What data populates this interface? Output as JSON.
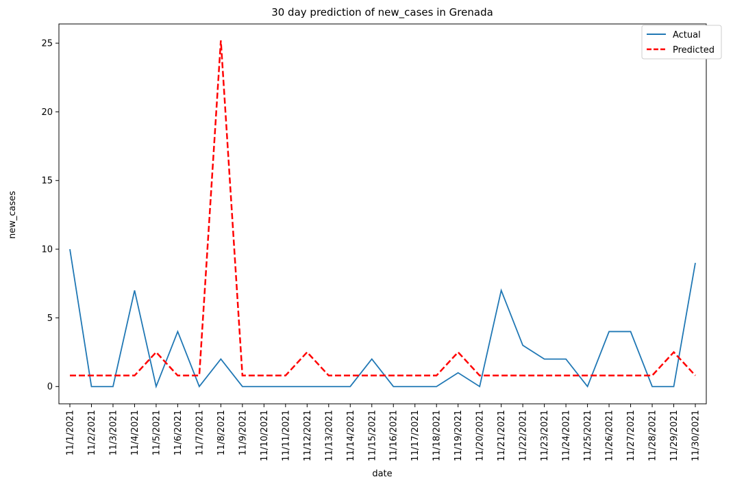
{
  "chart_data": {
    "type": "line",
    "title": "30 day prediction of new_cases in Grenada",
    "xlabel": "date",
    "ylabel": "new_cases",
    "categories": [
      "11/1/2021",
      "11/2/2021",
      "11/3/2021",
      "11/4/2021",
      "11/5/2021",
      "11/6/2021",
      "11/7/2021",
      "11/8/2021",
      "11/9/2021",
      "11/10/2021",
      "11/11/2021",
      "11/12/2021",
      "11/13/2021",
      "11/14/2021",
      "11/15/2021",
      "11/16/2021",
      "11/17/2021",
      "11/18/2021",
      "11/19/2021",
      "11/20/2021",
      "11/21/2021",
      "11/22/2021",
      "11/23/2021",
      "11/24/2021",
      "11/25/2021",
      "11/26/2021",
      "11/27/2021",
      "11/28/2021",
      "11/29/2021",
      "11/30/2021"
    ],
    "ylim": [
      -1.26,
      26.4
    ],
    "yticks": [
      0,
      5,
      10,
      15,
      20,
      25
    ],
    "grid": false,
    "legend_position": "top-right",
    "series": [
      {
        "name": "Actual",
        "color": "#1f77b4",
        "style": "solid",
        "values": [
          10,
          0,
          0,
          7,
          0,
          4,
          0,
          2,
          0,
          0,
          0,
          0,
          0,
          0,
          2,
          0,
          0,
          0,
          1,
          0,
          7,
          3,
          2,
          2,
          0,
          4,
          4,
          0,
          0,
          9
        ]
      },
      {
        "name": "Predicted",
        "color": "#ff0000",
        "style": "dashed",
        "values": [
          0.8,
          0.8,
          0.8,
          0.8,
          2.5,
          0.8,
          0.8,
          25.2,
          0.8,
          0.8,
          0.8,
          2.5,
          0.8,
          0.8,
          0.8,
          0.8,
          0.8,
          0.8,
          2.5,
          0.8,
          0.8,
          0.8,
          0.8,
          0.8,
          0.8,
          0.8,
          0.8,
          0.8,
          2.5,
          0.8
        ]
      }
    ]
  }
}
